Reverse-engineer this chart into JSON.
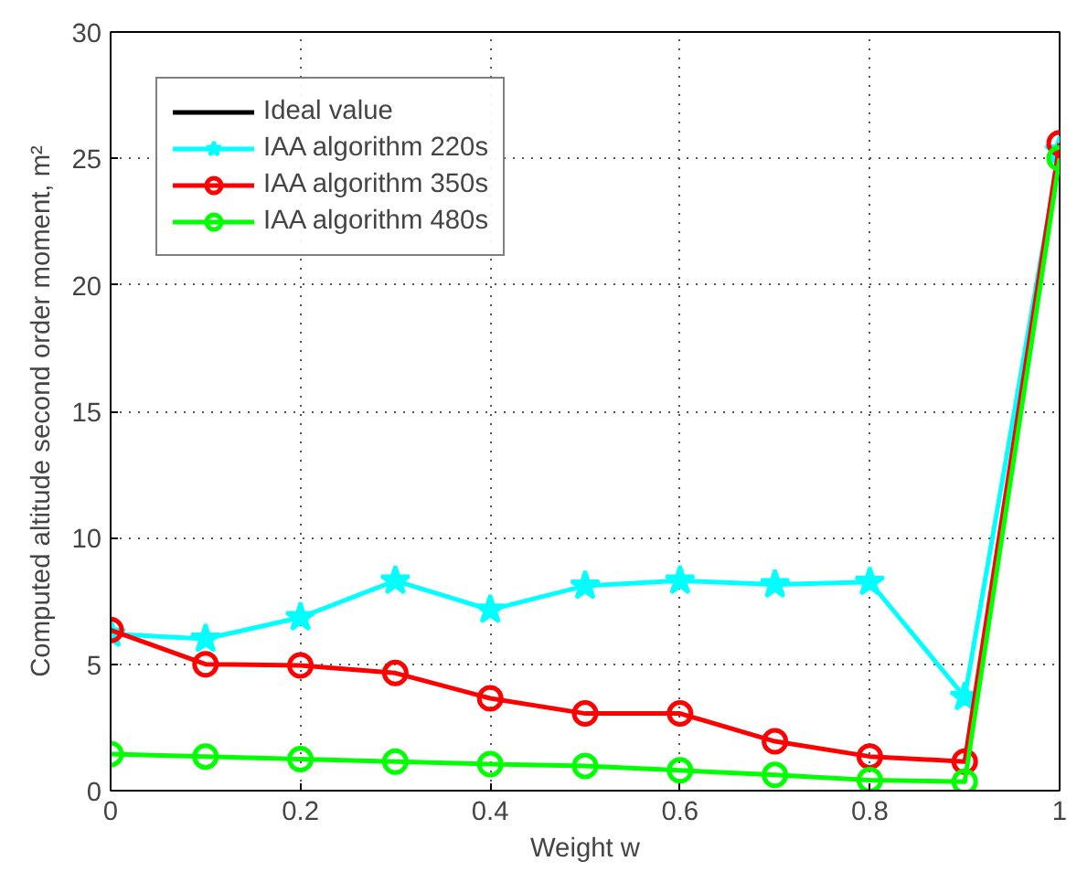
{
  "chart_data": {
    "type": "line",
    "xlabel": "Weight w",
    "ylabel": "Computed altitude second order moment, m²",
    "x": [
      0,
      0.1,
      0.2,
      0.3,
      0.4,
      0.5,
      0.6,
      0.7,
      0.8,
      0.9,
      1
    ],
    "series": [
      {
        "name": "Ideal value",
        "color": "#000000",
        "marker": "none",
        "values": [
          null,
          null,
          null,
          null,
          null,
          null,
          null,
          null,
          null,
          null,
          null
        ]
      },
      {
        "name": "IAA algorithm 220s",
        "color": "#00ffff",
        "marker": "star",
        "values": [
          6.2,
          6.0,
          6.85,
          8.3,
          7.15,
          8.1,
          8.3,
          8.15,
          8.25,
          3.7,
          25.3
        ]
      },
      {
        "name": "IAA algorithm 350s",
        "color": "#ff0000",
        "marker": "circle",
        "values": [
          6.35,
          5.0,
          4.95,
          4.65,
          3.65,
          3.05,
          3.05,
          1.95,
          1.35,
          1.15,
          25.6
        ]
      },
      {
        "name": "IAA algorithm 480s",
        "color": "#00ff00",
        "marker": "circle",
        "values": [
          1.45,
          1.35,
          1.25,
          1.15,
          1.05,
          0.98,
          0.8,
          0.62,
          0.42,
          0.35,
          25.0
        ]
      }
    ],
    "xlim": [
      0,
      1
    ],
    "xticks": [
      0,
      0.2,
      0.4,
      0.6,
      0.8,
      1
    ],
    "ylim": [
      0,
      30
    ],
    "yticks": [
      0,
      5,
      10,
      15,
      20,
      25,
      30
    ],
    "grid": true,
    "legend": "top left",
    "line_style": "solid"
  }
}
